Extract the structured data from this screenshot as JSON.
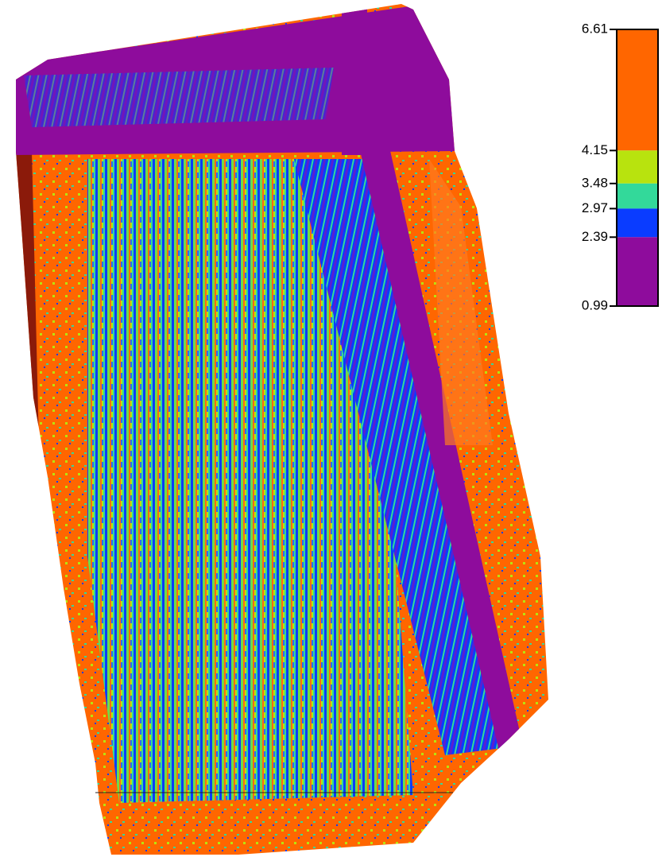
{
  "legend": {
    "ticks": [
      6.61,
      4.15,
      3.48,
      2.97,
      2.39,
      0.99
    ],
    "colors": [
      "#ff6600",
      "#b8e30e",
      "#33d99a",
      "#0a3cff",
      "#8e0c9c"
    ]
  }
}
